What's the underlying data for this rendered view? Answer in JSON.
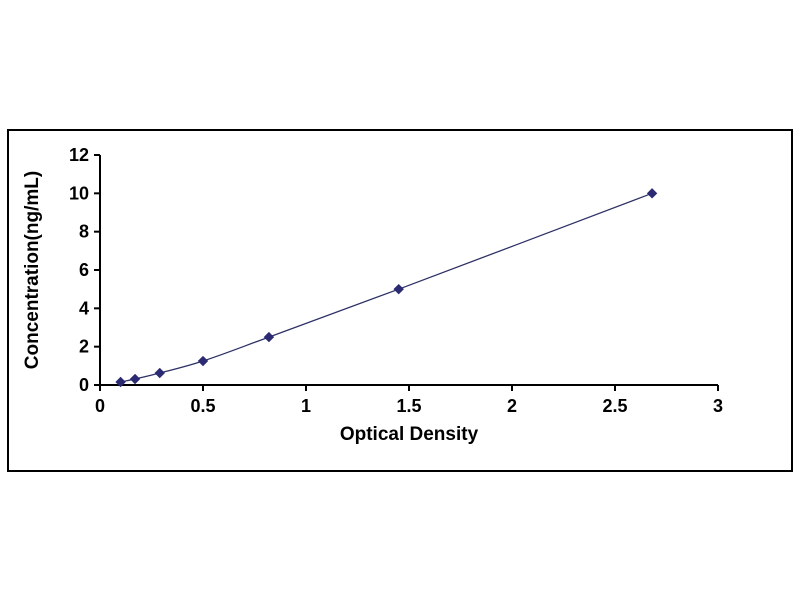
{
  "chart_data": {
    "type": "line",
    "title": "",
    "xlabel": "Optical Density",
    "ylabel": "Concentration(ng/mL)",
    "x": [
      0.1,
      0.17,
      0.29,
      0.5,
      0.82,
      1.45,
      2.68
    ],
    "y": [
      0.156,
      0.312,
      0.625,
      1.25,
      2.5,
      5.0,
      10.0
    ],
    "xlim": [
      0,
      3
    ],
    "ylim": [
      0,
      12
    ],
    "xticks": [
      0,
      0.5,
      1,
      1.5,
      2,
      2.5,
      3
    ],
    "xtick_labels": [
      "0",
      "0.5",
      "1",
      "1.5",
      "2",
      "2.5",
      "3"
    ],
    "yticks": [
      0,
      2,
      4,
      6,
      8,
      10,
      12
    ],
    "ytick_labels": [
      "0",
      "2",
      "4",
      "6",
      "8",
      "10",
      "12"
    ],
    "grid": false,
    "legend": "none",
    "marker": "diamond",
    "colors": {
      "line": "#2e3166",
      "marker": "#2b2a72",
      "axis": "#000000",
      "frame_border": "#000000",
      "background": "#ffffff"
    }
  }
}
